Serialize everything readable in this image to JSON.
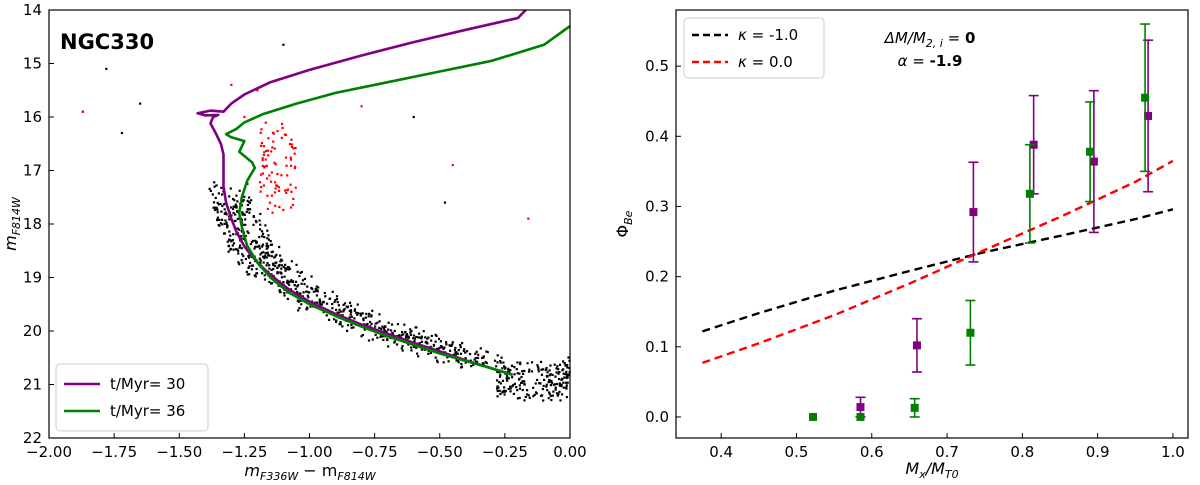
{
  "chart_data": [
    {
      "type": "scatter",
      "title": "NGC330",
      "xlabel_main": "m",
      "xlabel_sub1": "F336W",
      "xlabel_op": " − m",
      "xlabel_sub2": "F814W",
      "ylabel_main": "m",
      "ylabel_sub": "F814W",
      "xlim": [
        -2.0,
        0.0
      ],
      "ylim": [
        22,
        14
      ],
      "xticks": [
        -2.0,
        -1.75,
        -1.5,
        -1.25,
        -1.0,
        -0.75,
        -0.5,
        -0.25,
        0.0
      ],
      "xtick_labels": [
        "−2.00",
        "−1.75",
        "−1.50",
        "−1.25",
        "−1.00",
        "−0.75",
        "−0.50",
        "−0.25",
        "0.00"
      ],
      "yticks": [
        14,
        15,
        16,
        17,
        18,
        19,
        20,
        21,
        22
      ],
      "ytick_labels": [
        "14",
        "15",
        "16",
        "17",
        "18",
        "19",
        "20",
        "21",
        "22"
      ],
      "legend_position": "lower-left",
      "series": [
        {
          "name": "t/Myr= 30",
          "kind": "line",
          "color": "#800080",
          "points": [
            [
              -0.22,
              20.82
            ],
            [
              -0.3,
              20.7
            ],
            [
              -0.4,
              20.55
            ],
            [
              -0.5,
              20.38
            ],
            [
              -0.6,
              20.22
            ],
            [
              -0.7,
              20.05
            ],
            [
              -0.8,
              19.88
            ],
            [
              -0.9,
              19.68
            ],
            [
              -1.0,
              19.45
            ],
            [
              -1.08,
              19.22
            ],
            [
              -1.15,
              18.95
            ],
            [
              -1.2,
              18.72
            ],
            [
              -1.25,
              18.42
            ],
            [
              -1.28,
              18.15
            ],
            [
              -1.3,
              17.9
            ],
            [
              -1.32,
              17.6
            ],
            [
              -1.33,
              17.3
            ],
            [
              -1.33,
              17.0
            ],
            [
              -1.33,
              16.7
            ],
            [
              -1.34,
              16.5
            ],
            [
              -1.36,
              16.3
            ],
            [
              -1.38,
              16.12
            ],
            [
              -1.37,
              16.0
            ],
            [
              -1.35,
              15.96
            ],
            [
              -1.4,
              15.97
            ],
            [
              -1.43,
              15.93
            ],
            [
              -1.38,
              15.88
            ],
            [
              -1.33,
              15.9
            ],
            [
              -1.3,
              15.75
            ],
            [
              -1.25,
              15.58
            ],
            [
              -1.15,
              15.35
            ],
            [
              -1.0,
              15.12
            ],
            [
              -0.8,
              14.85
            ],
            [
              -0.6,
              14.6
            ],
            [
              -0.4,
              14.37
            ],
            [
              -0.2,
              14.15
            ],
            [
              -0.17,
              14.0
            ]
          ]
        },
        {
          "name": "t/Myr= 36",
          "kind": "line",
          "color": "#008000",
          "points": [
            [
              -0.22,
              20.82
            ],
            [
              -0.3,
              20.7
            ],
            [
              -0.4,
              20.56
            ],
            [
              -0.5,
              20.42
            ],
            [
              -0.6,
              20.26
            ],
            [
              -0.7,
              20.1
            ],
            [
              -0.8,
              19.92
            ],
            [
              -0.9,
              19.72
            ],
            [
              -1.0,
              19.5
            ],
            [
              -1.08,
              19.28
            ],
            [
              -1.15,
              19.0
            ],
            [
              -1.2,
              18.72
            ],
            [
              -1.24,
              18.4
            ],
            [
              -1.26,
              18.05
            ],
            [
              -1.27,
              17.8
            ],
            [
              -1.26,
              17.5
            ],
            [
              -1.24,
              17.2
            ],
            [
              -1.21,
              16.95
            ],
            [
              -1.22,
              16.85
            ],
            [
              -1.27,
              16.65
            ],
            [
              -1.25,
              16.45
            ],
            [
              -1.3,
              16.38
            ],
            [
              -1.32,
              16.32
            ],
            [
              -1.28,
              16.22
            ],
            [
              -1.25,
              16.1
            ],
            [
              -1.18,
              15.95
            ],
            [
              -1.05,
              15.75
            ],
            [
              -0.9,
              15.55
            ],
            [
              -0.7,
              15.35
            ],
            [
              -0.5,
              15.15
            ],
            [
              -0.3,
              14.95
            ],
            [
              -0.1,
              14.65
            ],
            [
              0.0,
              14.3
            ]
          ]
        }
      ]
    },
    {
      "type": "line",
      "xlabel_main": "M",
      "xlabel_sub1": "x",
      "xlabel_op": "/M",
      "xlabel_sub2": "T0",
      "ylabel_main": "Φ",
      "ylabel_sub": "Be",
      "xlim": [
        0.34,
        1.02
      ],
      "ylim": [
        -0.03,
        0.58
      ],
      "xticks": [
        0.4,
        0.5,
        0.6,
        0.7,
        0.8,
        0.9,
        1.0
      ],
      "xtick_labels": [
        "0.4",
        "0.5",
        "0.6",
        "0.7",
        "0.8",
        "0.9",
        "1.0"
      ],
      "yticks": [
        0.0,
        0.1,
        0.2,
        0.3,
        0.4,
        0.5
      ],
      "ytick_labels": [
        "0.0",
        "0.1",
        "0.2",
        "0.3",
        "0.4",
        "0.5"
      ],
      "legend_position": "top-left",
      "annotation": {
        "line1_label": "ΔM/M",
        "line1_sub": "2, i",
        "line1_eq": " = ",
        "line1_value": "0",
        "line2_label": "α = ",
        "line2_value": "-1.9"
      },
      "series": [
        {
          "name": "κ = -1.0",
          "legend_symbol": "κ",
          "legend_value": " =  -1.0",
          "kind": "dashed",
          "color": "#000000",
          "x": [
            0.375,
            0.45,
            0.55,
            0.65,
            0.75,
            0.85,
            0.95,
            1.0
          ],
          "y": [
            0.122,
            0.148,
            0.18,
            0.208,
            0.235,
            0.258,
            0.282,
            0.296
          ]
        },
        {
          "name": "κ = 0.0",
          "legend_symbol": "κ",
          "legend_value": " =  0.0",
          "kind": "dashed",
          "color": "#ff0000",
          "x": [
            0.375,
            0.45,
            0.55,
            0.65,
            0.75,
            0.85,
            0.95,
            1.0
          ],
          "y": [
            0.077,
            0.105,
            0.145,
            0.19,
            0.238,
            0.285,
            0.335,
            0.365
          ]
        },
        {
          "name": "purple-points",
          "kind": "errorbar",
          "color": "#800080",
          "x": [
            0.585,
            0.66,
            0.735,
            0.815,
            0.895,
            0.967
          ],
          "y": [
            0.014,
            0.102,
            0.292,
            0.388,
            0.364,
            0.429
          ],
          "yerr": [
            0.014,
            0.038,
            0.071,
            0.07,
            0.101,
            0.108
          ]
        },
        {
          "name": "green-points",
          "kind": "errorbar",
          "color": "#008000",
          "x": [
            0.522,
            0.585,
            0.657,
            0.731,
            0.81,
            0.89,
            0.963
          ],
          "y": [
            0.0,
            0.0,
            0.013,
            0.12,
            0.318,
            0.378,
            0.455
          ],
          "yerr": [
            0.0,
            0.0,
            0.013,
            0.046,
            0.07,
            0.071,
            0.105
          ]
        }
      ]
    }
  ],
  "colors": {
    "black": "#000000",
    "red": "#ff0000",
    "purple": "#800080",
    "green": "#008000"
  }
}
